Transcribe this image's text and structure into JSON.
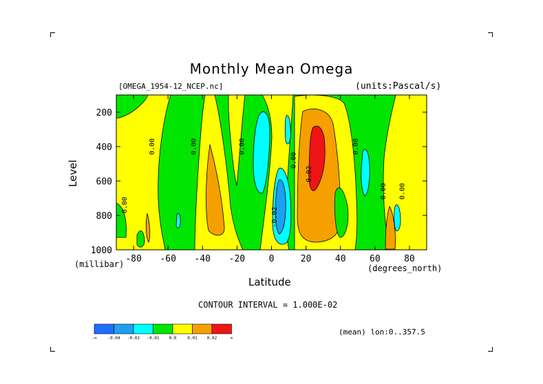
{
  "title": "Monthly Mean Omega",
  "dataset_label": "[OMEGA_1954-12_NCEP.nc]",
  "units_label": "(units:Pascal/s)",
  "x_axis_label": "Latitude",
  "x_units": "(degrees_north)",
  "y_axis_label": "Level",
  "y_units": "(millibar)",
  "contour_interval_text": "CONTOUR INTERVAL = 1.000E-02",
  "mean_text": "(mean) lon:0..357.5",
  "colors": {
    "neg3": "#1e6eff",
    "neg2": "#1ea0f0",
    "neg1": "#00ffff",
    "neg0": "#00e600",
    "pos0": "#ffff00",
    "pos1": "#f5a000",
    "pos2": "#f01414"
  },
  "chart_data": {
    "type": "heatmap",
    "title": "Monthly Mean Omega",
    "xlabel": "Latitude",
    "ylabel": "Level",
    "xlim": [
      -90,
      90
    ],
    "ylim": [
      1000,
      100
    ],
    "x_ticks": [
      -80,
      -60,
      -40,
      -20,
      0,
      20,
      40,
      60,
      80
    ],
    "x_tick_labels": [
      "-80",
      "-60",
      "-40",
      "-20",
      "0",
      "20",
      "40",
      "60",
      "80"
    ],
    "y_ticks": [
      200,
      400,
      600,
      800,
      1000
    ],
    "y_tick_labels": [
      "200",
      "400",
      "600",
      "800",
      "1000"
    ],
    "contour_labels": [
      {
        "text": "0.00",
        "lat": -84,
        "lev": 740
      },
      {
        "text": "0.00",
        "lat": -68,
        "lev": 400
      },
      {
        "text": "0.00",
        "lat": -44,
        "lev": 400
      },
      {
        "text": "0.00",
        "lat": -16,
        "lev": 400
      },
      {
        "text": "-0.02",
        "lat": 3,
        "lev": 810
      },
      {
        "text": "0.00",
        "lat": 14,
        "lev": 480
      },
      {
        "text": "0.02",
        "lat": 23,
        "lev": 560
      },
      {
        "text": "0.00",
        "lat": 50,
        "lev": 400
      },
      {
        "text": "0.00",
        "lat": 66,
        "lev": 660
      },
      {
        "text": "0.00",
        "lat": 77,
        "lev": 660
      }
    ],
    "colorbar": {
      "levels": [
        "-∞",
        "-0.04",
        "-0.02",
        "-0.01",
        "0.0",
        "0.01",
        "0.02",
        "∞"
      ]
    }
  }
}
